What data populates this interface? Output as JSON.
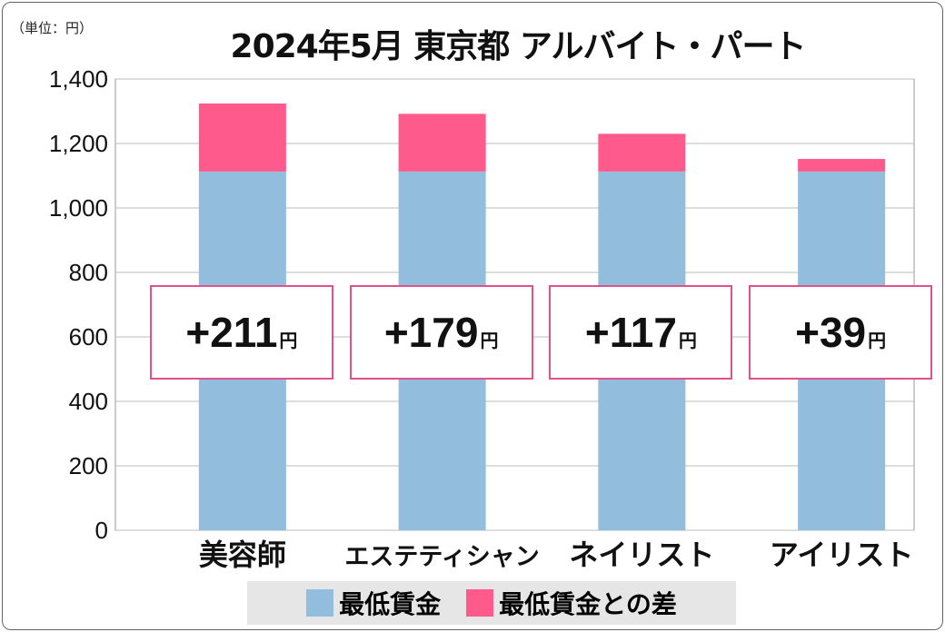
{
  "chart_data": {
    "type": "bar",
    "stacked": true,
    "title": "2024年5月 東京都 アルバイト・パート",
    "unit_label": "（単位：円）",
    "categories": [
      "美容師",
      "エステティシャン",
      "ネイリスト",
      "アイリスト"
    ],
    "series": [
      {
        "name": "最低賃金",
        "values": [
          1113,
          1113,
          1113,
          1113
        ],
        "color": "#92bddc"
      },
      {
        "name": "最低賃金との差",
        "values": [
          211,
          179,
          117,
          39
        ],
        "color": "#ff5a8c"
      }
    ],
    "annotations": [
      "+211",
      "+179",
      "+117",
      "+39"
    ],
    "annotation_unit": "円",
    "ylim": [
      0,
      1400
    ],
    "yticks": [
      0,
      200,
      400,
      600,
      800,
      1000,
      1200,
      1400
    ],
    "ytick_labels": [
      "0",
      "200",
      "400",
      "600",
      "800",
      "1,000",
      "1,200",
      "1,400"
    ],
    "grid": true,
    "legend_position": "bottom"
  }
}
